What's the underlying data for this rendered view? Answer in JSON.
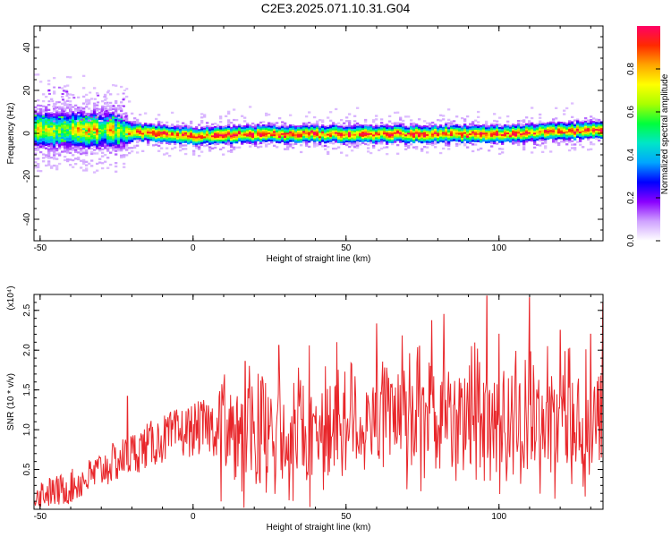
{
  "title": "C2E3.2025.071.10.31.G04",
  "chart_data": [
    {
      "type": "heatmap",
      "xlabel": "Height of straight line (km)",
      "ylabel": "Frequency (Hz)",
      "xlim": [
        -52,
        134
      ],
      "ylim": [
        -50,
        50
      ],
      "xticks": [
        -50,
        0,
        50,
        100
      ],
      "yticks": [
        -40,
        -20,
        0,
        20,
        40
      ],
      "colorbar": {
        "label": "Normalized spectral amplitude",
        "range": [
          0,
          1
        ],
        "ticks": [
          "0.0",
          "0.2",
          "0.4",
          "0.6",
          "0.8"
        ],
        "colors": [
          "#ffffff",
          "#cfa2ff",
          "#8a00ff",
          "#0000ff",
          "#00a5ff",
          "#00e6c8",
          "#00ff3c",
          "#aaff00",
          "#ffff00",
          "#ffa500",
          "#ff2a00",
          "#ff0066"
        ]
      },
      "band": {
        "center_hz": [
          [
            -52,
            2
          ],
          [
            -30,
            2
          ],
          [
            -22,
            1
          ],
          [
            0,
            -1
          ],
          [
            20,
            0
          ],
          [
            40,
            0
          ],
          [
            60,
            0
          ],
          [
            80,
            0
          ],
          [
            100,
            0
          ],
          [
            134,
            2
          ]
        ],
        "halfwidth_hz": [
          [
            -52,
            8
          ],
          [
            -25,
            8
          ],
          [
            -20,
            4
          ],
          [
            134,
            4
          ]
        ]
      }
    },
    {
      "type": "line",
      "xlabel": "Height of straight line (km)",
      "ylabel": "SNR (10 * v/v)",
      "yscale_label": "(x10⁴)",
      "xlim": [
        -52,
        134
      ],
      "ylim": [
        0,
        2.7
      ],
      "xticks": [
        -50,
        0,
        50,
        100
      ],
      "yticks": [
        "0.5",
        "1.0",
        "1.5",
        "2.0",
        "2.5"
      ],
      "color": "#e8262a",
      "x": [
        -52,
        -45,
        -40,
        -35,
        -30,
        -25,
        -20,
        -15,
        -10,
        -5,
        0,
        5,
        8,
        10,
        15,
        20,
        25,
        30,
        35,
        40,
        45,
        50,
        55,
        60,
        65,
        70,
        75,
        80,
        85,
        90,
        95,
        100,
        105,
        110,
        115,
        120,
        125,
        130,
        134
      ],
      "mean": [
        0.2,
        0.22,
        0.28,
        0.38,
        0.5,
        0.6,
        0.7,
        0.8,
        0.88,
        0.95,
        1.0,
        1.05,
        1.0,
        0.95,
        0.95,
        0.9,
        0.9,
        0.95,
        1.0,
        1.0,
        1.05,
        1.1,
        1.1,
        1.15,
        1.15,
        1.15,
        1.1,
        1.15,
        1.2,
        1.15,
        1.15,
        1.1,
        1.15,
        1.1,
        1.1,
        1.1,
        1.1,
        1.1,
        1.15
      ],
      "peaks": [
        [
          -21.5,
          1.42
        ],
        [
          5,
          1.3
        ],
        [
          17,
          1.86
        ],
        [
          28,
          2.06
        ],
        [
          38,
          2.06
        ],
        [
          47,
          2.1
        ],
        [
          60,
          2.33
        ],
        [
          74,
          2.05
        ],
        [
          78,
          2.37
        ],
        [
          82,
          2.45
        ],
        [
          91,
          2.05
        ],
        [
          96,
          2.68
        ],
        [
          100,
          2.2
        ],
        [
          110,
          2.66
        ],
        [
          120,
          2.25
        ],
        [
          130,
          2.2
        ],
        [
          134,
          2.6
        ]
      ]
    }
  ]
}
